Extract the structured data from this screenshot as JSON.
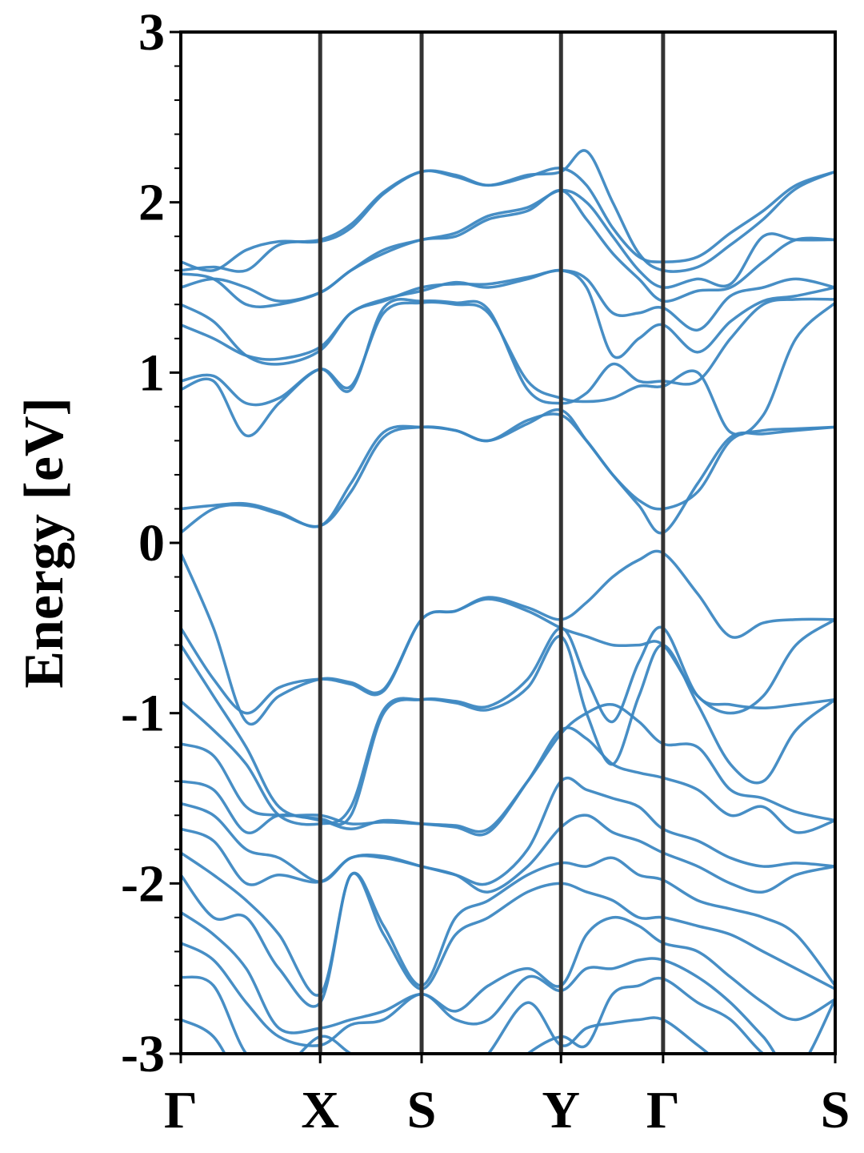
{
  "chart_data": {
    "type": "line",
    "title": "",
    "xlabel": "",
    "ylabel": "Energy [eV]",
    "ylim": [
      -3,
      3
    ],
    "yticks": [
      "-3",
      "-2",
      "-1",
      "0",
      "1",
      "2",
      "3"
    ],
    "ytick_values": [
      -3,
      -2,
      -1,
      0,
      1,
      2,
      3
    ],
    "minor_tick_step": 0.2,
    "grid": false,
    "legend": "none",
    "band_color": "#3d88c2",
    "kpath_line_color": "#333333",
    "high_symmetry_points": [
      {
        "label": "Γ",
        "k": 0
      },
      {
        "label": "X",
        "k": 0.213
      },
      {
        "label": "S",
        "k": 0.368
      },
      {
        "label": "Y",
        "k": 0.581
      },
      {
        "label": "Γ",
        "k": 0.737
      },
      {
        "label": "S",
        "k": 1.0
      }
    ],
    "k": [
      0,
      0.05,
      0.1,
      0.15,
      0.213,
      0.26,
      0.31,
      0.368,
      0.42,
      0.47,
      0.53,
      0.581,
      0.62,
      0.66,
      0.7,
      0.737,
      0.79,
      0.84,
      0.89,
      0.94,
      1.0
    ],
    "series": [
      {
        "name": "c1",
        "values": [
          0.06,
          0.2,
          0.22,
          0.17,
          0.1,
          0.3,
          0.62,
          0.68,
          0.66,
          0.6,
          0.7,
          0.78,
          0.6,
          0.4,
          0.22,
          0.06,
          0.35,
          0.62,
          0.64,
          0.66,
          0.68
        ]
      },
      {
        "name": "c2",
        "values": [
          0.2,
          0.22,
          0.23,
          0.18,
          0.1,
          0.35,
          0.65,
          0.68,
          0.66,
          0.6,
          0.72,
          0.75,
          0.6,
          0.4,
          0.25,
          0.2,
          0.3,
          0.6,
          0.66,
          0.67,
          0.68
        ]
      },
      {
        "name": "c3",
        "values": [
          0.9,
          0.95,
          0.63,
          0.82,
          1.02,
          0.92,
          1.35,
          1.41,
          1.4,
          1.35,
          0.95,
          0.85,
          0.83,
          0.85,
          0.92,
          0.92,
          1.0,
          0.65,
          0.75,
          1.2,
          1.41
        ]
      },
      {
        "name": "c4",
        "values": [
          0.95,
          0.98,
          0.82,
          0.85,
          1.02,
          0.9,
          1.38,
          1.42,
          1.41,
          1.37,
          0.9,
          0.82,
          0.88,
          1.05,
          0.95,
          0.95,
          0.95,
          1.2,
          1.4,
          1.43,
          1.43
        ]
      },
      {
        "name": "c5",
        "values": [
          1.28,
          1.2,
          1.1,
          1.08,
          1.15,
          1.35,
          1.43,
          1.48,
          1.53,
          1.5,
          1.55,
          1.6,
          1.5,
          1.1,
          1.2,
          1.28,
          1.12,
          1.3,
          1.42,
          1.45,
          1.5
        ]
      },
      {
        "name": "c6",
        "values": [
          1.4,
          1.3,
          1.1,
          1.05,
          1.13,
          1.35,
          1.42,
          1.5,
          1.52,
          1.52,
          1.56,
          1.6,
          1.55,
          1.35,
          1.35,
          1.38,
          1.25,
          1.45,
          1.5,
          1.55,
          1.5
        ]
      },
      {
        "name": "c7",
        "values": [
          1.5,
          1.55,
          1.5,
          1.42,
          1.47,
          1.6,
          1.7,
          1.78,
          1.8,
          1.9,
          1.95,
          2.07,
          1.9,
          1.7,
          1.55,
          1.42,
          1.48,
          1.5,
          1.65,
          1.78,
          1.78
        ]
      },
      {
        "name": "c8",
        "values": [
          1.58,
          1.55,
          1.4,
          1.4,
          1.47,
          1.6,
          1.72,
          1.78,
          1.82,
          1.92,
          1.97,
          2.07,
          2.0,
          1.8,
          1.6,
          1.5,
          1.55,
          1.52,
          1.8,
          1.78,
          1.78
        ]
      },
      {
        "name": "c9",
        "values": [
          1.65,
          1.6,
          1.72,
          1.77,
          1.77,
          1.85,
          2.05,
          2.18,
          2.15,
          2.1,
          2.16,
          2.18,
          2.3,
          2.0,
          1.7,
          1.6,
          1.62,
          1.75,
          1.9,
          2.08,
          2.18
        ]
      },
      {
        "name": "c10",
        "values": [
          1.6,
          1.62,
          1.6,
          1.75,
          1.78,
          1.87,
          2.06,
          2.18,
          2.16,
          2.1,
          2.15,
          2.2,
          2.1,
          1.85,
          1.68,
          1.65,
          1.68,
          1.82,
          1.95,
          2.1,
          2.18
        ]
      },
      {
        "name": "v1",
        "values": [
          -0.06,
          -0.5,
          -1.05,
          -0.9,
          -0.8,
          -0.82,
          -0.86,
          -0.45,
          -0.4,
          -0.32,
          -0.38,
          -0.45,
          -0.35,
          -0.2,
          -0.1,
          -0.06,
          -0.3,
          -0.55,
          -0.47,
          -0.45,
          -0.45
        ]
      },
      {
        "name": "v2",
        "values": [
          -0.5,
          -0.8,
          -1.0,
          -0.85,
          -0.8,
          -0.83,
          -0.87,
          -0.45,
          -0.4,
          -0.33,
          -0.4,
          -0.5,
          -0.55,
          -0.6,
          -0.6,
          -0.6,
          -0.9,
          -1.0,
          -0.9,
          -0.6,
          -0.45
        ]
      },
      {
        "name": "v3",
        "values": [
          -0.6,
          -0.9,
          -1.2,
          -1.55,
          -1.62,
          -1.6,
          -1.0,
          -0.92,
          -0.93,
          -0.96,
          -0.8,
          -0.5,
          -0.8,
          -1.05,
          -0.7,
          -0.5,
          -0.9,
          -0.95,
          -0.97,
          -0.95,
          -0.92
        ]
      },
      {
        "name": "v4",
        "values": [
          -0.93,
          -1.1,
          -1.3,
          -1.6,
          -1.65,
          -1.55,
          -0.98,
          -0.92,
          -0.94,
          -0.98,
          -0.85,
          -0.55,
          -1.0,
          -1.3,
          -0.9,
          -0.6,
          -0.95,
          -1.3,
          -1.4,
          -1.1,
          -0.92
        ]
      },
      {
        "name": "v5",
        "values": [
          -1.18,
          -1.25,
          -1.55,
          -1.6,
          -1.6,
          -1.65,
          -1.64,
          -1.65,
          -1.66,
          -1.68,
          -1.4,
          -1.12,
          -1.0,
          -0.95,
          -1.05,
          -1.18,
          -1.2,
          -1.45,
          -1.5,
          -1.58,
          -1.63
        ]
      },
      {
        "name": "v6",
        "values": [
          -1.4,
          -1.45,
          -1.7,
          -1.6,
          -1.63,
          -1.68,
          -1.63,
          -1.65,
          -1.67,
          -1.7,
          -1.4,
          -1.1,
          -1.15,
          -1.3,
          -1.35,
          -1.38,
          -1.45,
          -1.6,
          -1.55,
          -1.7,
          -1.63
        ]
      },
      {
        "name": "v7",
        "values": [
          -1.53,
          -1.6,
          -1.8,
          -1.85,
          -1.99,
          -1.85,
          -1.85,
          -1.9,
          -1.95,
          -2.0,
          -1.8,
          -1.4,
          -1.45,
          -1.5,
          -1.55,
          -1.68,
          -1.75,
          -1.85,
          -1.9,
          -1.88,
          -1.9
        ]
      },
      {
        "name": "v8",
        "values": [
          -1.68,
          -1.75,
          -2.0,
          -1.95,
          -1.99,
          -1.85,
          -1.84,
          -1.9,
          -1.95,
          -2.05,
          -1.9,
          -1.67,
          -1.6,
          -1.7,
          -1.75,
          -1.82,
          -1.9,
          -2.0,
          -2.05,
          -1.95,
          -1.9
        ]
      },
      {
        "name": "v9",
        "values": [
          -1.82,
          -1.95,
          -2.1,
          -2.3,
          -2.65,
          -1.95,
          -2.25,
          -2.6,
          -2.2,
          -2.1,
          -1.95,
          -1.88,
          -1.9,
          -1.85,
          -1.95,
          -1.98,
          -2.1,
          -2.15,
          -2.2,
          -2.3,
          -2.6
        ]
      },
      {
        "name": "v10",
        "values": [
          -1.95,
          -2.2,
          -2.2,
          -2.5,
          -2.7,
          -1.95,
          -2.3,
          -2.62,
          -2.3,
          -2.2,
          -2.05,
          -2.0,
          -2.05,
          -2.1,
          -2.2,
          -2.2,
          -2.25,
          -2.3,
          -2.4,
          -2.5,
          -2.62
        ]
      },
      {
        "name": "v11",
        "values": [
          -2.17,
          -2.3,
          -2.5,
          -2.85,
          -2.85,
          -2.8,
          -2.75,
          -2.65,
          -2.75,
          -2.6,
          -2.5,
          -2.6,
          -2.3,
          -2.2,
          -2.25,
          -2.35,
          -2.4,
          -2.55,
          -2.7,
          -2.8,
          -2.68
        ]
      },
      {
        "name": "v12",
        "values": [
          -2.35,
          -2.45,
          -2.7,
          -2.9,
          -2.95,
          -2.83,
          -2.8,
          -2.65,
          -2.8,
          -2.8,
          -2.55,
          -2.63,
          -2.5,
          -2.5,
          -2.45,
          -2.45,
          -2.55,
          -2.7,
          -2.9,
          -3.1,
          -2.68
        ]
      },
      {
        "name": "v13",
        "values": [
          -2.55,
          -2.6,
          -3.0,
          -3.1,
          -2.9,
          -3.0,
          -3.1,
          -3.2,
          -3.2,
          -3.0,
          -2.7,
          -2.95,
          -2.85,
          -2.82,
          -2.8,
          -2.8,
          -2.95,
          -3.1,
          -3.2,
          -3.2,
          -3.2
        ]
      },
      {
        "name": "v14",
        "values": [
          -2.8,
          -2.9,
          -3.2,
          -3.2,
          -3.2,
          -3.2,
          -3.2,
          -3.2,
          -3.2,
          -3.2,
          -3.0,
          -2.9,
          -2.95,
          -2.65,
          -2.6,
          -2.56,
          -2.7,
          -2.8,
          -3.0,
          -3.1,
          -3.2
        ]
      }
    ]
  }
}
